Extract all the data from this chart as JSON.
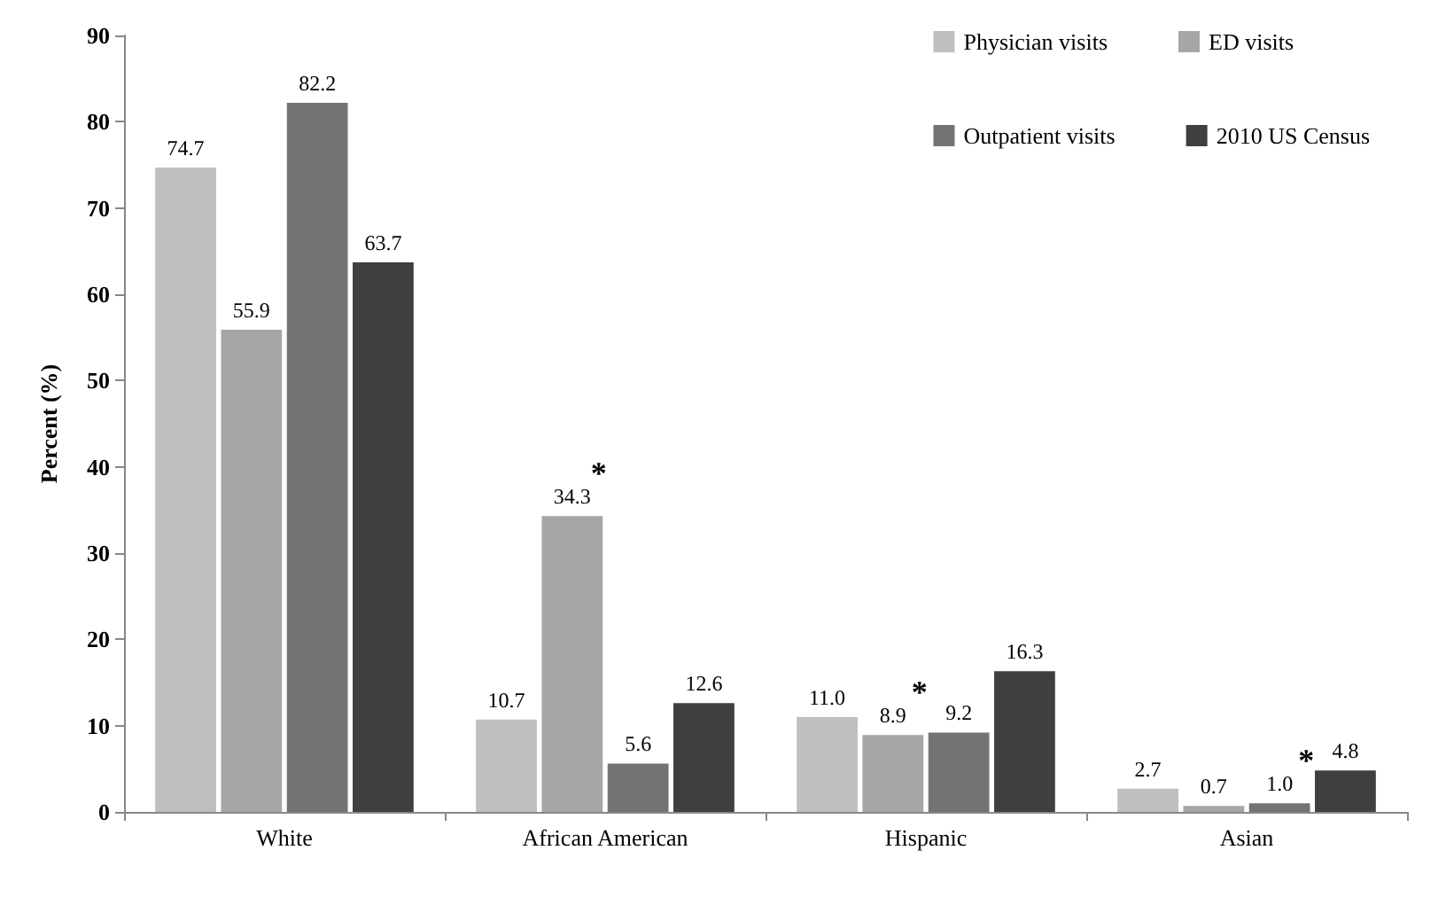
{
  "chart_data": {
    "type": "bar",
    "categories": [
      "White",
      "African American",
      "Hispanic",
      "Asian"
    ],
    "series": [
      {
        "name": "Physician visits",
        "color": "#bfbfbf",
        "values": [
          74.7,
          10.7,
          11.0,
          2.7
        ],
        "value_labels": [
          "74.7",
          "10.7",
          "11.0",
          "2.7"
        ]
      },
      {
        "name": "ED visits",
        "color": "#a6a6a6",
        "values": [
          55.9,
          34.3,
          8.9,
          0.7
        ],
        "value_labels": [
          "55.9",
          "34.3",
          "8.9",
          "0.7"
        ]
      },
      {
        "name": "Outpatient visits",
        "color": "#737373",
        "values": [
          82.2,
          5.6,
          9.2,
          1.0
        ],
        "value_labels": [
          "82.2",
          "5.6",
          "9.2",
          "1.0"
        ]
      },
      {
        "name": "2010 US Census",
        "color": "#3f3f3f",
        "values": [
          63.7,
          12.6,
          16.3,
          4.8
        ],
        "value_labels": [
          "63.7",
          "12.6",
          "16.3",
          "4.8"
        ]
      }
    ],
    "ylabel": "Percent (%)",
    "ylim": [
      0,
      90
    ],
    "yticks": [
      0,
      10,
      20,
      30,
      40,
      50,
      60,
      70,
      80,
      90
    ],
    "grid": false,
    "legend": "top right",
    "annotations": [
      {
        "text": "*",
        "x": "African American",
        "y": 34.3
      },
      {
        "text": "*",
        "x": "Hispanic",
        "y": 8.9
      },
      {
        "text": "*",
        "x": "Asian",
        "y": 1.0
      }
    ]
  }
}
